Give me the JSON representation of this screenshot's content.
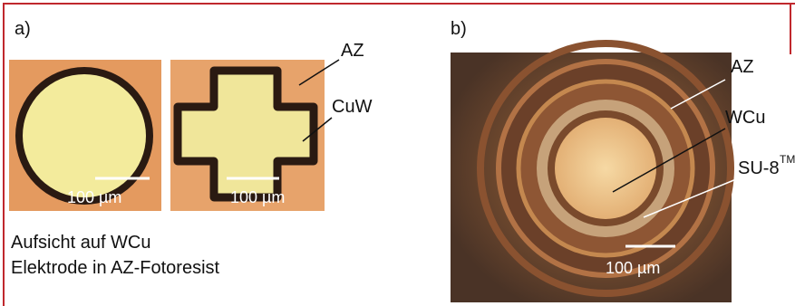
{
  "panel_a": {
    "label": "a)",
    "annotations": [
      "AZ",
      "CuW"
    ],
    "scale_bars": [
      "100 µm",
      "100 µm"
    ],
    "caption": [
      "Aufsicht auf WCu",
      "Elektrode in AZ-Fotoresist"
    ]
  },
  "panel_b": {
    "label": "b)",
    "annotations": [
      "AZ",
      "WCu",
      "SU-8"
    ],
    "superscript": "TM",
    "scale_bar": "100 µm"
  }
}
